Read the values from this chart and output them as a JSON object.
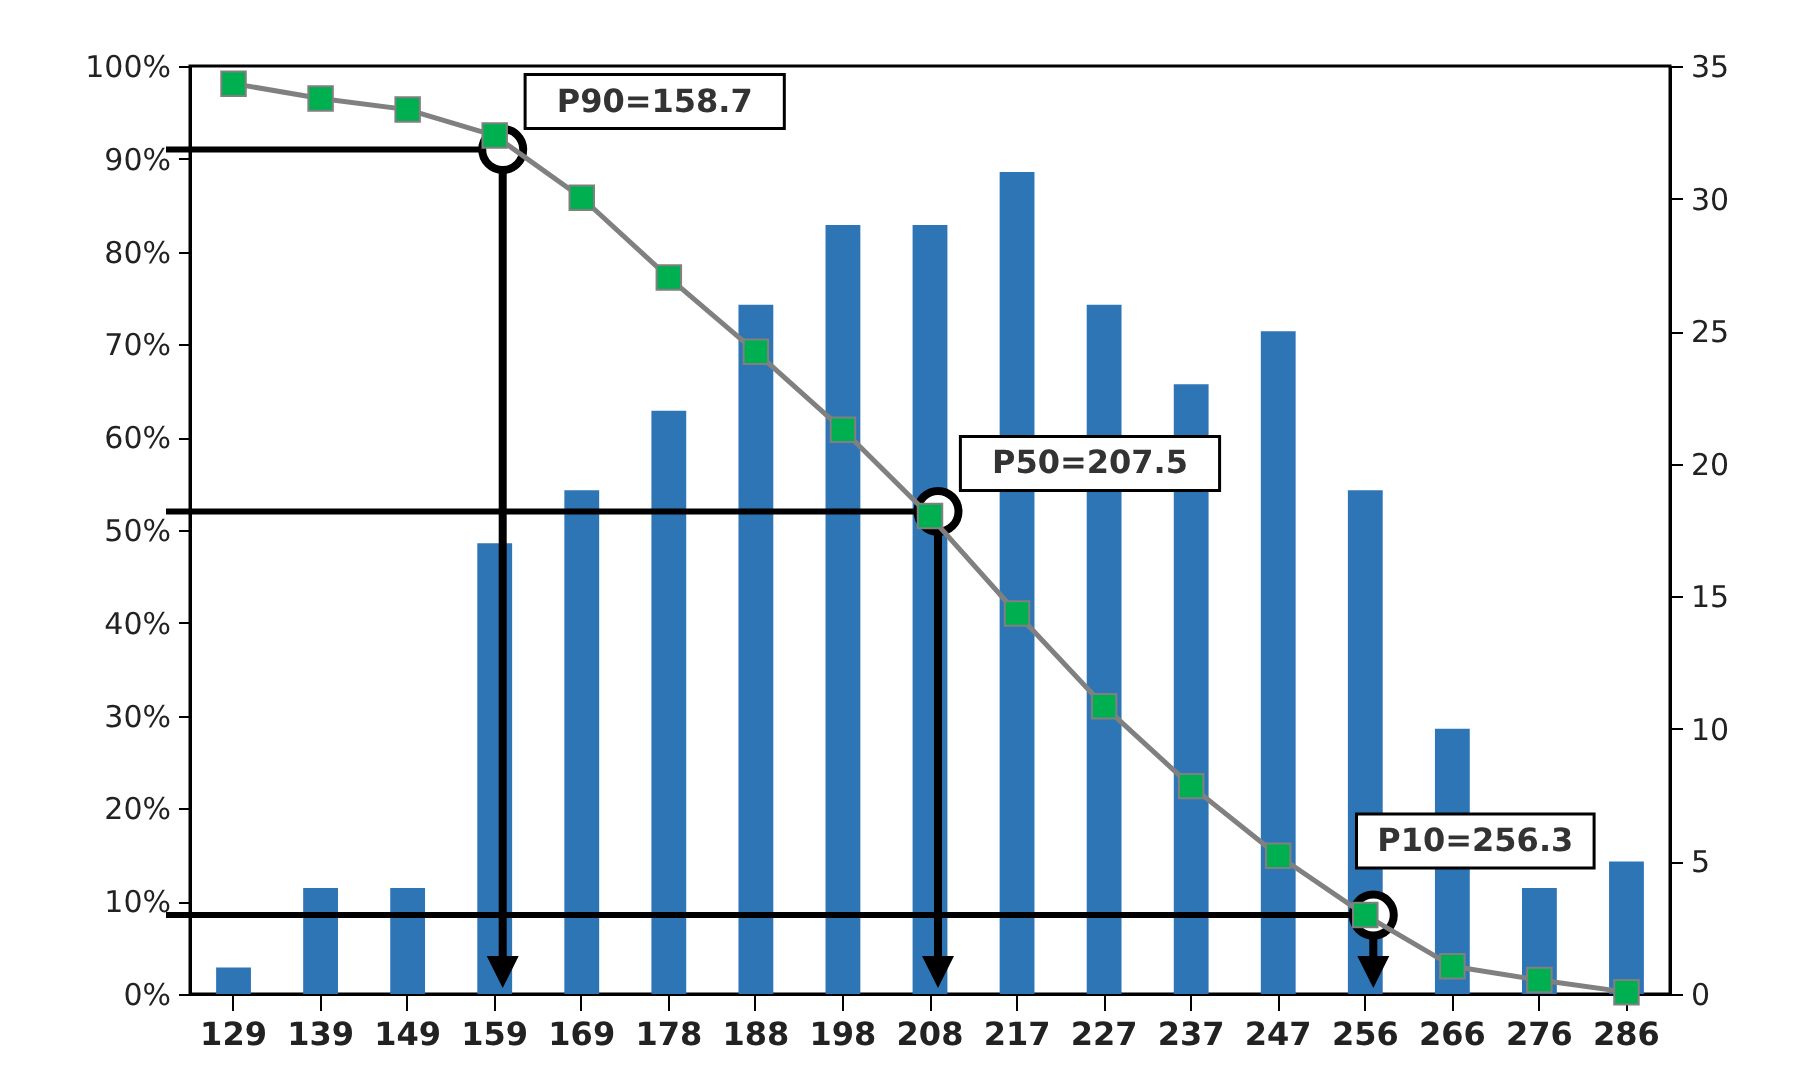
{
  "chart_data": {
    "type": "bar",
    "categories": [
      "129",
      "139",
      "149",
      "159",
      "169",
      "178",
      "188",
      "198",
      "208",
      "217",
      "227",
      "237",
      "247",
      "256",
      "266",
      "276",
      "286"
    ],
    "series": [
      {
        "axis": "y2",
        "color": "#2e75b6",
        "values": [
          1,
          4,
          4,
          17,
          19,
          22,
          26,
          29,
          29,
          31,
          26,
          23,
          25,
          19,
          10,
          4,
          5
        ]
      },
      {
        "type": "line",
        "color": "#808080",
        "marker": "square",
        "values": [
          98.1,
          96.5,
          95.3,
          92.5,
          85.8,
          77.2,
          69.2,
          60.8,
          51.5,
          41,
          31,
          22.4,
          14.9,
          8.5,
          3,
          1.5,
          0.2
        ]
      }
    ],
    "ylim": [
      0,
      100
    ],
    "yticks": [
      {
        "value": 0,
        "label": "0%"
      },
      {
        "value": 10,
        "label": "10%"
      },
      {
        "value": 20,
        "label": "20%"
      },
      {
        "value": 30,
        "label": "30%"
      },
      {
        "value": 40,
        "label": "40%"
      },
      {
        "value": 50,
        "label": "50%"
      },
      {
        "value": 60,
        "label": "60%"
      },
      {
        "value": 70,
        "label": "70%"
      },
      {
        "value": 80,
        "label": "80%"
      },
      {
        "value": 90,
        "label": "90%"
      },
      {
        "value": 100,
        "label": "100%"
      }
    ],
    "y2lim": [
      0,
      35
    ],
    "y2ticks": [
      0,
      5,
      10,
      15,
      20,
      25,
      30,
      35
    ],
    "annotations": [
      {
        "text": "P90=158.7",
        "x": "159",
        "y": 91
      },
      {
        "text": "P50=207.5",
        "x": "208",
        "y": 52
      },
      {
        "text": "P10=256.3",
        "x": "256",
        "y": 8.5
      }
    ],
    "ref_lines": [
      {
        "axis": "y",
        "value": 91
      },
      {
        "axis": "y",
        "value": 52
      },
      {
        "axis": "y",
        "value": 8.5
      }
    ],
    "grid": false
  }
}
